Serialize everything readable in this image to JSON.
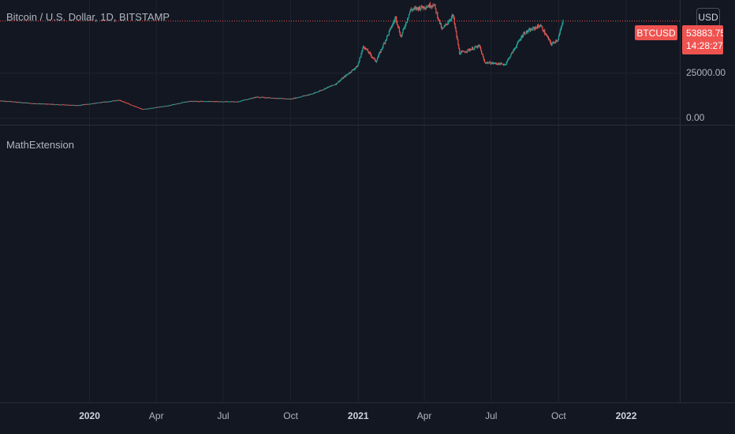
{
  "header": {
    "title": "Bitcoin / U.S. Dollar, 1D, BITSTAMP",
    "currency_button": "USD"
  },
  "symbol_tag": "BTCUSD",
  "price_tag": {
    "price": "53883.75",
    "countdown": "14:28:27"
  },
  "indicator": {
    "title": "MathExtension"
  },
  "colors": {
    "up": "#26a69a",
    "down": "#ef5350",
    "background": "#131722",
    "grid": "#1f2330"
  },
  "chart_data": {
    "type": "candlestick",
    "title": "Bitcoin / U.S. Dollar, 1D, BITSTAMP",
    "ylabel": "",
    "xlabel": "",
    "x_range": [
      "2019-09-01",
      "2022-03-15"
    ],
    "ylim": [
      0,
      62000
    ],
    "y_ticks": [
      {
        "value": 0,
        "label": "0.00"
      },
      {
        "value": 25000,
        "label": "25000.00"
      }
    ],
    "x_ticks": [
      {
        "date": "2020-01-01",
        "label": "2020",
        "bold": true
      },
      {
        "date": "2020-04-01",
        "label": "Apr",
        "bold": false
      },
      {
        "date": "2020-07-01",
        "label": "Jul",
        "bold": false
      },
      {
        "date": "2020-10-01",
        "label": "Oct",
        "bold": false
      },
      {
        "date": "2021-01-01",
        "label": "2021",
        "bold": true
      },
      {
        "date": "2021-04-01",
        "label": "Apr",
        "bold": false
      },
      {
        "date": "2021-07-01",
        "label": "Jul",
        "bold": false
      },
      {
        "date": "2021-10-01",
        "label": "Oct",
        "bold": false
      },
      {
        "date": "2022-01-01",
        "label": "2022",
        "bold": true
      }
    ],
    "last_price": 53883.75,
    "grid": true,
    "series_name": "BTCUSD",
    "price_path": [
      {
        "date": "2019-09-01",
        "price": 9800
      },
      {
        "date": "2019-10-15",
        "price": 8300
      },
      {
        "date": "2019-12-15",
        "price": 7200
      },
      {
        "date": "2020-02-10",
        "price": 10100
      },
      {
        "date": "2020-03-13",
        "price": 5000
      },
      {
        "date": "2020-04-15",
        "price": 6900
      },
      {
        "date": "2020-05-15",
        "price": 9500
      },
      {
        "date": "2020-07-20",
        "price": 9200
      },
      {
        "date": "2020-08-15",
        "price": 11800
      },
      {
        "date": "2020-10-01",
        "price": 10700
      },
      {
        "date": "2020-11-01",
        "price": 13800
      },
      {
        "date": "2020-12-01",
        "price": 19000
      },
      {
        "date": "2020-12-31",
        "price": 29000
      },
      {
        "date": "2021-01-08",
        "price": 40000
      },
      {
        "date": "2021-01-25",
        "price": 31500
      },
      {
        "date": "2021-02-21",
        "price": 56000
      },
      {
        "date": "2021-02-28",
        "price": 45000
      },
      {
        "date": "2021-03-13",
        "price": 60000
      },
      {
        "date": "2021-04-14",
        "price": 63000
      },
      {
        "date": "2021-04-25",
        "price": 49000
      },
      {
        "date": "2021-05-10",
        "price": 57000
      },
      {
        "date": "2021-05-19",
        "price": 36000
      },
      {
        "date": "2021-06-15",
        "price": 40000
      },
      {
        "date": "2021-06-22",
        "price": 31000
      },
      {
        "date": "2021-07-20",
        "price": 29800
      },
      {
        "date": "2021-08-14",
        "price": 47000
      },
      {
        "date": "2021-09-06",
        "price": 51500
      },
      {
        "date": "2021-09-21",
        "price": 41000
      },
      {
        "date": "2021-09-30",
        "price": 43800
      },
      {
        "date": "2021-10-07",
        "price": 53883.75
      }
    ]
  }
}
